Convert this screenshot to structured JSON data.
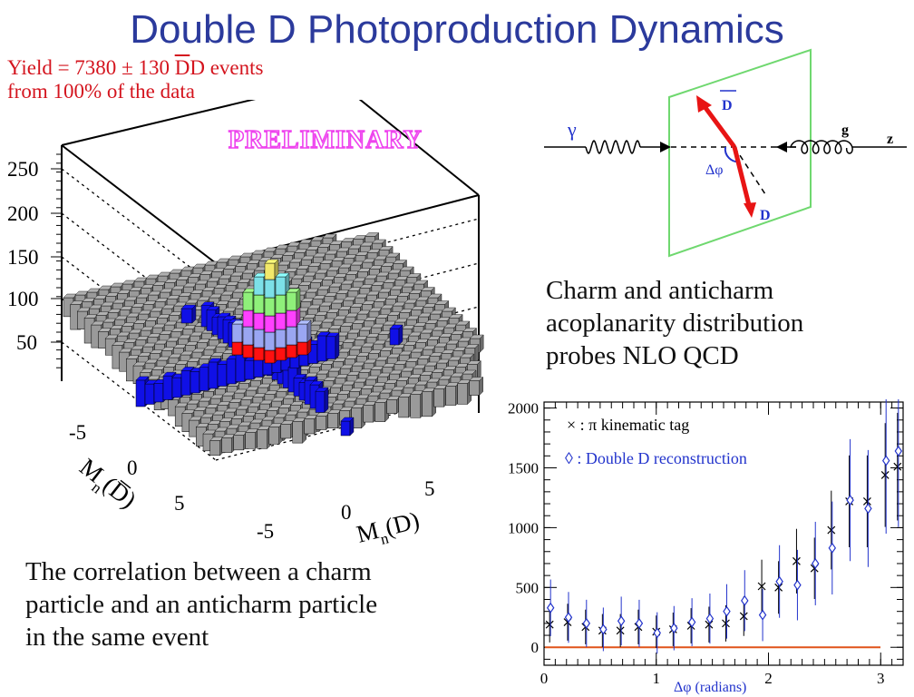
{
  "title": "Double D Photoproduction Dynamics",
  "lego_plot": {
    "yield_line1_a": "Yield = 7380",
    "yield_pm": "±",
    "yield_line1_b": "130",
    "yield_dbar": "D",
    "yield_d": "D",
    "yield_events": "events",
    "yield_line2": "from 100% of the data",
    "preliminary": "PRELIMINARY",
    "z_ticks": [
      "250",
      "200",
      "150",
      "100",
      "50"
    ],
    "left_axis_ticks": [
      "-5",
      "0",
      "5"
    ],
    "right_axis_ticks": [
      "-5",
      "0",
      "5"
    ],
    "left_axis_label": "M",
    "left_axis_sub": "n",
    "left_axis_arg": "(D)",
    "right_axis_label": "M",
    "right_axis_sub": "n",
    "right_axis_arg": "(D)",
    "colors": {
      "yellow": "#f2e86a",
      "cyan": "#7ce0e8",
      "green": "#8ff07a",
      "magenta": "#ff40ff",
      "lavender": "#9aa6f2",
      "red": "#ff1010",
      "blue": "#1010e6",
      "gray": "#9a9a9a"
    }
  },
  "diagram": {
    "gamma": "γ",
    "g": "g",
    "z": "z",
    "dbar": "D",
    "d": "D",
    "dphi": "Δφ"
  },
  "caption_right": [
    "Charm and anticharm",
    "acoplanarity distribution",
    "probes NLO QCD"
  ],
  "caption_left": [
    "The correlation between a charm",
    "particle and an anticharm particle",
    "in the same event"
  ],
  "chart_data": {
    "type": "scatter",
    "xlabel": "Δφ (radians)",
    "ylabel": "",
    "xlim": [
      0,
      3.2
    ],
    "ylim": [
      -150,
      2050
    ],
    "x_ticks": [
      "0",
      "1",
      "2",
      "3"
    ],
    "y_ticks": [
      "0",
      "500",
      "1000",
      "1500",
      "2000"
    ],
    "legend": [
      "× : π kinematic tag",
      "◊ : Double D reconstruction"
    ],
    "series": [
      {
        "name": "× : π kinematic tag",
        "x": [
          0.05,
          0.21,
          0.37,
          0.52,
          0.68,
          0.84,
          1.0,
          1.15,
          1.31,
          1.47,
          1.62,
          1.78,
          1.94,
          2.09,
          2.25,
          2.41,
          2.56,
          2.72,
          2.88,
          3.04,
          3.15
        ],
        "y": [
          190,
          210,
          170,
          140,
          140,
          170,
          130,
          150,
          180,
          190,
          200,
          260,
          510,
          500,
          720,
          660,
          980,
          1220,
          1220,
          1440,
          1510
        ]
      },
      {
        "name": "◊ : Double D reconstruction",
        "x": [
          0.05,
          0.21,
          0.37,
          0.52,
          0.68,
          0.84,
          1.0,
          1.15,
          1.31,
          1.47,
          1.62,
          1.78,
          1.94,
          2.09,
          2.25,
          2.41,
          2.56,
          2.72,
          2.88,
          3.04,
          3.15
        ],
        "y": [
          330,
          250,
          200,
          150,
          220,
          200,
          120,
          160,
          210,
          240,
          300,
          390,
          270,
          550,
          520,
          700,
          830,
          1230,
          1160,
          1560,
          1640
        ]
      }
    ],
    "reference_line": 0
  }
}
